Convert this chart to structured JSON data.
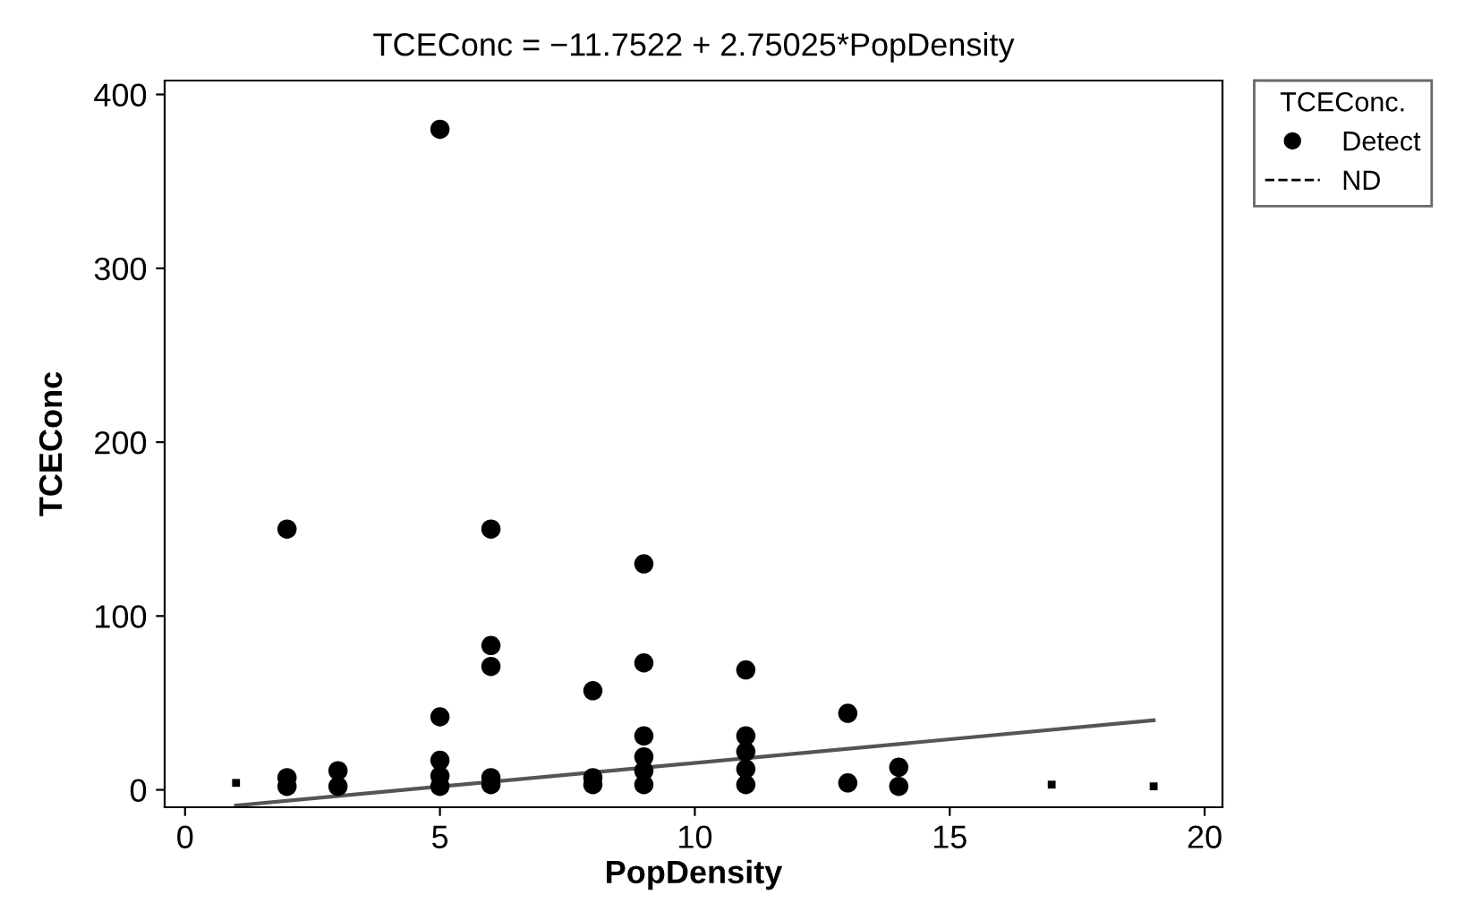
{
  "chart_data": {
    "type": "scatter",
    "title": "TCEConc = −11.7522 + 2.75025*PopDensity",
    "xlabel": "PopDensity",
    "ylabel": "TCEConc",
    "legend_title": "TCEConc.",
    "xlim": [
      -0.4,
      20.35
    ],
    "ylim": [
      -10,
      408
    ],
    "xticks": [
      0,
      5,
      10,
      15,
      20
    ],
    "yticks": [
      0,
      100,
      200,
      300,
      400
    ],
    "grid": false,
    "legend": "right",
    "series": [
      {
        "name": "Detect",
        "marker": "circle",
        "color": "#000000",
        "x": [
          5,
          2,
          6,
          9,
          6,
          6,
          9,
          11,
          8,
          5,
          13,
          2,
          2,
          3,
          3,
          5,
          5,
          5,
          6,
          6,
          8,
          8,
          9,
          9,
          9,
          9,
          11,
          11,
          11,
          11,
          13,
          14,
          14
        ],
        "values": [
          380,
          150,
          150,
          130,
          83,
          71,
          73,
          69,
          57,
          42,
          44,
          7,
          2,
          11,
          2,
          17,
          8,
          2,
          7,
          3,
          7,
          3,
          31,
          19,
          11,
          3,
          31,
          22,
          12,
          3,
          4,
          13,
          2
        ]
      },
      {
        "name": "ND",
        "marker": "square",
        "line_style": "dashed",
        "color": "#000000",
        "x": [
          1,
          17,
          19
        ],
        "values": [
          4,
          3,
          2
        ]
      },
      {
        "type": "line",
        "marker": "none",
        "color": "#555555",
        "x": [
          1,
          19
        ],
        "values": [
          -9,
          40
        ]
      }
    ]
  }
}
